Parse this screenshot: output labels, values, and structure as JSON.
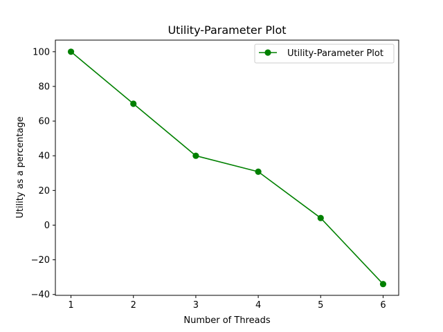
{
  "chart_data": {
    "type": "line",
    "title": "Utility-Parameter Plot",
    "xlabel": "Number of Threads",
    "ylabel": "Utility as a percentage",
    "x": [
      1,
      2,
      3,
      4,
      5,
      6
    ],
    "series": [
      {
        "name": "Utility-Parameter Plot",
        "values": [
          100,
          70,
          40,
          30.8,
          4.1,
          -34
        ],
        "color": "#008000",
        "marker": "circle"
      }
    ],
    "xlim": [
      0.75,
      6.25
    ],
    "ylim": [
      -40.5,
      106.7
    ],
    "xticks": [
      1,
      2,
      3,
      4,
      5,
      6
    ],
    "yticks": [
      -40,
      -20,
      0,
      20,
      40,
      60,
      80,
      100
    ],
    "grid": false,
    "legend": "upper right"
  }
}
